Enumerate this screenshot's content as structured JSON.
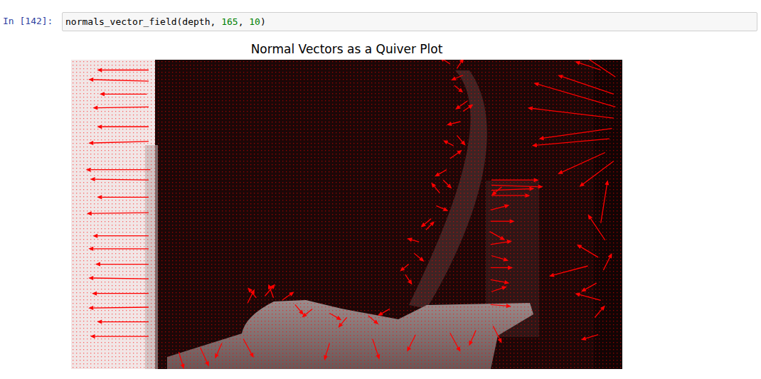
{
  "notebook": {
    "prompt": "In [142]:",
    "code": "normals_vector_field(depth, 165, 10)"
  },
  "chart_data": {
    "type": "quiver",
    "title": "Normal Vectors as a Quiver Plot",
    "color": "#ff0000",
    "tick_labels": false,
    "xlim": [
      0,
      640
    ],
    "ylim": [
      360,
      0
    ],
    "x": [
      90,
      90,
      88,
      90,
      90,
      90,
      92,
      90,
      90,
      90,
      90,
      90,
      90,
      90,
      90,
      90,
      90,
      90,
      632,
      630,
      632,
      630,
      628,
      625,
      620,
      630,
      615,
      440,
      448,
      455,
      445,
      460,
      455,
      452,
      448,
      444,
      440,
      436,
      432,
      428,
      424,
      418,
      412,
      404,
      398,
      392,
      388,
      488,
      488,
      488,
      488,
      500,
      487,
      487,
      486,
      487,
      488,
      487,
      487,
      488,
      487,
      205,
      215,
      225,
      235,
      245,
      260,
      280,
      300,
      320,
      345,
      370,
      125,
      150,
      175,
      200,
      300,
      350,
      400,
      440,
      470,
      490,
      615,
      620,
      612,
      618,
      610,
      615,
      608,
      612,
      600
    ],
    "y": [
      12,
      25,
      40,
      55,
      78,
      95,
      128,
      140,
      160,
      178,
      205,
      220,
      238,
      255,
      272,
      288,
      305,
      322,
      20,
      40,
      55,
      68,
      80,
      92,
      108,
      118,
      12,
      5,
      10,
      18,
      30,
      48,
      60,
      72,
      88,
      100,
      115,
      128,
      140,
      155,
      170,
      185,
      198,
      212,
      225,
      238,
      250,
      140,
      146,
      152,
      158,
      148,
      175,
      188,
      200,
      215,
      228,
      242,
      256,
      270,
      285,
      283,
      277,
      275,
      277,
      280,
      285,
      290,
      295,
      300,
      298,
      290,
      340,
      335,
      330,
      325,
      330,
      325,
      320,
      318,
      315,
      310,
      190,
      210,
      230,
      245,
      260,
      280,
      300,
      320,
      240
    ],
    "u": [
      -60,
      -70,
      -55,
      -65,
      -60,
      -70,
      -75,
      -68,
      -60,
      -72,
      -65,
      -70,
      -62,
      -70,
      -66,
      -70,
      -60,
      -68,
      -45,
      -65,
      -95,
      -100,
      -85,
      -90,
      -55,
      -40,
      -30,
      -12,
      8,
      -14,
      10,
      -14,
      12,
      -16,
      10,
      -12,
      14,
      -14,
      10,
      -10,
      14,
      -12,
      10,
      -14,
      12,
      -10,
      8,
      55,
      60,
      50,
      45,
      -12,
      22,
      28,
      18,
      25,
      20,
      26,
      22,
      18,
      24,
      8,
      -10,
      12,
      -6,
      14,
      10,
      -12,
      14,
      -10,
      12,
      -14,
      6,
      10,
      -8,
      12,
      -6,
      8,
      -10,
      12,
      -8,
      10,
      8,
      -20,
      -25,
      10,
      -18,
      -30,
      12,
      -20,
      -45
    ],
    "v": [
      0,
      -2,
      0,
      1,
      0,
      2,
      0,
      -1,
      0,
      1,
      0,
      0,
      0,
      -1,
      0,
      1,
      0,
      0,
      -30,
      -22,
      -28,
      -12,
      12,
      8,
      25,
      30,
      -10,
      -8,
      -12,
      6,
      8,
      10,
      -8,
      4,
      12,
      -6,
      -10,
      8,
      10,
      -12,
      6,
      10,
      -10,
      -4,
      10,
      8,
      12,
      0,
      2,
      -2,
      0,
      10,
      -6,
      0,
      10,
      -4,
      6,
      0,
      4,
      -6,
      2,
      -16,
      -12,
      -14,
      -16,
      -10,
      12,
      10,
      8,
      12,
      10,
      8,
      20,
      22,
      18,
      22,
      20,
      24,
      20,
      22,
      18,
      20,
      -50,
      -30,
      -15,
      -20,
      10,
      -8,
      -14,
      6,
      12
    ]
  }
}
